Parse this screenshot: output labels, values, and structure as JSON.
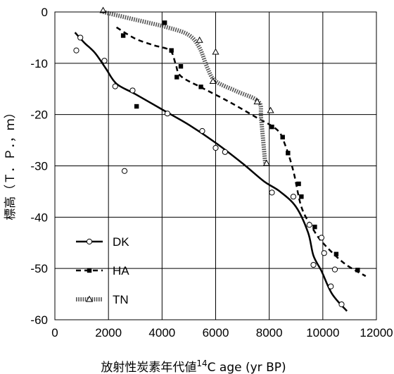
{
  "chart_data": {
    "type": "scatter",
    "xlabel": "放射性炭素年代値",
    "xlabel_sup": "14",
    "xlabel_suffix": "C age (yr BP)",
    "ylabel": "標高（Ｔ．Ｐ．，ｍ）",
    "xlim": [
      0,
      12000
    ],
    "ylim": [
      -60,
      0
    ],
    "xticks": [
      0,
      2000,
      4000,
      6000,
      8000,
      10000,
      12000
    ],
    "yticks": [
      0,
      -10,
      -20,
      -30,
      -40,
      -50,
      -60
    ],
    "grid": true,
    "legend_position": "bottom-left",
    "series": [
      {
        "name": "DK",
        "marker": "circle-open",
        "line_style": "solid",
        "color": "#000000",
        "points": [
          [
            800,
            -7.5
          ],
          [
            950,
            -5
          ],
          [
            1850,
            -9.5
          ],
          [
            2250,
            -14.5
          ],
          [
            2600,
            -31
          ],
          [
            2900,
            -15.3
          ],
          [
            4200,
            -19.8
          ],
          [
            5500,
            -23.2
          ],
          [
            6000,
            -26.5
          ],
          [
            6350,
            -27.3
          ],
          [
            8100,
            -35.2
          ],
          [
            8900,
            -36
          ],
          [
            9500,
            -41.5
          ],
          [
            9650,
            -49.3
          ],
          [
            9950,
            -44
          ],
          [
            10050,
            -47
          ],
          [
            10300,
            -53.5
          ],
          [
            10450,
            -50.2
          ],
          [
            10700,
            -57
          ]
        ],
        "curve": [
          [
            750,
            -4
          ],
          [
            1100,
            -6
          ],
          [
            1500,
            -8
          ],
          [
            1900,
            -11
          ],
          [
            2300,
            -14
          ],
          [
            3000,
            -16
          ],
          [
            4000,
            -19
          ],
          [
            5000,
            -22
          ],
          [
            6000,
            -25.5
          ],
          [
            7000,
            -29.5
          ],
          [
            7800,
            -33
          ],
          [
            8400,
            -35
          ],
          [
            9000,
            -38
          ],
          [
            9450,
            -43
          ],
          [
            9650,
            -47.5
          ],
          [
            9950,
            -50.5
          ],
          [
            10350,
            -55
          ],
          [
            10900,
            -58.3
          ]
        ]
      },
      {
        "name": "HA",
        "marker": "square-filled",
        "line_style": "dashed",
        "color": "#000000",
        "points": [
          [
            2550,
            -4.6
          ],
          [
            3050,
            -18.4
          ],
          [
            4100,
            -2.1
          ],
          [
            4350,
            -7.5
          ],
          [
            4550,
            -12.7
          ],
          [
            4700,
            -10.6
          ],
          [
            5450,
            -14.6
          ],
          [
            8100,
            -22.4
          ],
          [
            8500,
            -24.4
          ],
          [
            8700,
            -27.5
          ],
          [
            9100,
            -33.5
          ],
          [
            9200,
            -36
          ],
          [
            9700,
            -41.9
          ],
          [
            10500,
            -47.2
          ],
          [
            11300,
            -50.3
          ]
        ],
        "curve": [
          [
            2300,
            -3
          ],
          [
            3000,
            -5.2
          ],
          [
            3700,
            -6.5
          ],
          [
            4300,
            -7.5
          ],
          [
            4500,
            -10
          ],
          [
            4700,
            -12.5
          ],
          [
            5500,
            -14.8
          ],
          [
            6500,
            -17.5
          ],
          [
            7500,
            -20.5
          ],
          [
            8300,
            -23
          ],
          [
            8600,
            -26
          ],
          [
            8900,
            -31
          ],
          [
            9200,
            -38
          ],
          [
            9600,
            -42
          ],
          [
            10000,
            -45
          ],
          [
            10800,
            -49
          ],
          [
            11600,
            -51.5
          ]
        ]
      },
      {
        "name": "TN",
        "marker": "triangle-open",
        "line_style": "dotted-thick",
        "color": "#000000",
        "points": [
          [
            1800,
            0.3
          ],
          [
            5400,
            -5.5
          ],
          [
            6000,
            -7.8
          ],
          [
            5900,
            -13.5
          ],
          [
            7550,
            -17.5
          ],
          [
            8050,
            -19.2
          ],
          [
            7900,
            -29.5
          ]
        ],
        "curve": [
          [
            1800,
            0
          ],
          [
            3000,
            -1.5
          ],
          [
            4200,
            -3
          ],
          [
            5000,
            -4.5
          ],
          [
            5400,
            -7
          ],
          [
            5700,
            -11
          ],
          [
            6000,
            -13.5
          ],
          [
            6800,
            -15.5
          ],
          [
            7600,
            -17.5
          ],
          [
            7700,
            -21
          ],
          [
            7850,
            -29.5
          ]
        ]
      }
    ]
  }
}
